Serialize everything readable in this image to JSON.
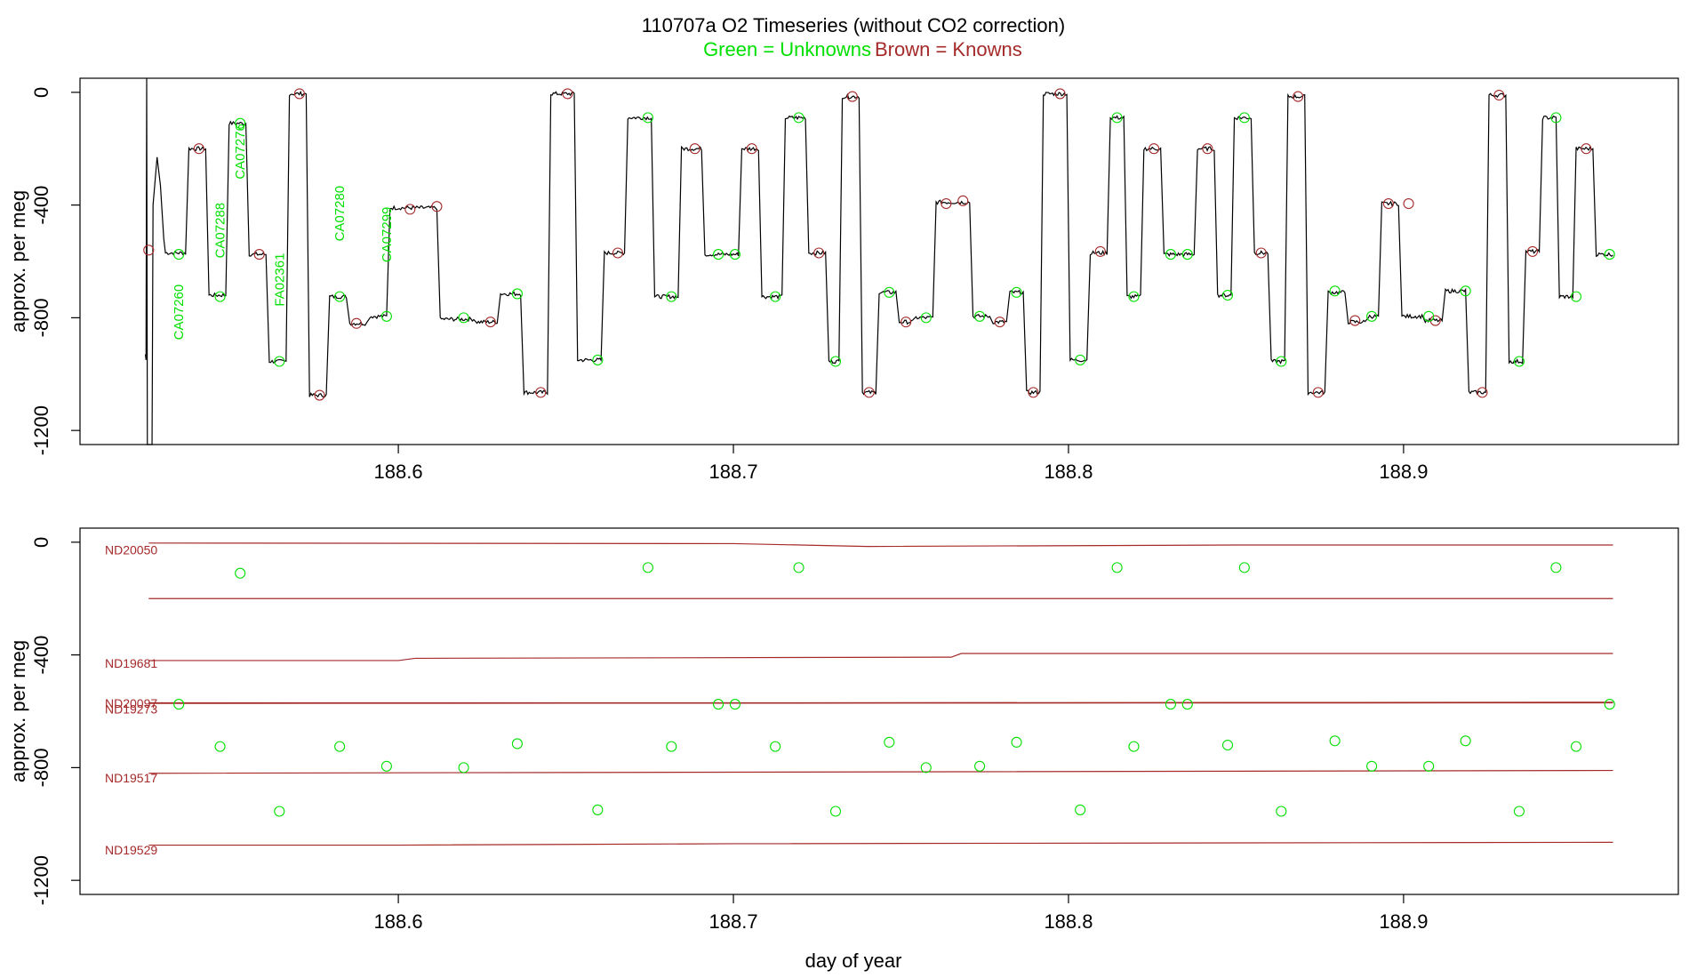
{
  "title": {
    "main": "110707a   O2 Timeseries (without CO2 correction)",
    "legend_unknowns": "Green = Unknowns",
    "legend_knowns": "Brown = Knowns"
  },
  "colors": {
    "unknown": "#00e000",
    "known": "#a52a2a",
    "trace": "#000000"
  },
  "chart_data": [
    {
      "type": "line",
      "panel": "top",
      "title": "110707a   O2 Timeseries (without CO2 correction)",
      "xlabel": "",
      "ylabel": "approx. per meg",
      "xlim": [
        188.505,
        188.982
      ],
      "ylim": [
        -1250,
        50
      ],
      "x_ticks": [
        "188.6",
        "188.7",
        "188.8",
        "188.9"
      ],
      "x_tick_values": [
        188.6,
        188.7,
        188.8,
        188.9
      ],
      "y_ticks": [
        "0",
        "-400",
        "-800",
        "-1200"
      ],
      "y_tick_values": [
        0,
        -400,
        -800,
        -1200
      ],
      "segments": [
        {
          "x0": 188.5305,
          "x1": 188.5365,
          "y": -570
        },
        {
          "x0": 188.5375,
          "x1": 188.5425,
          "y": -200
        },
        {
          "x0": 188.5435,
          "x1": 188.5485,
          "y": -720
        },
        {
          "x0": 188.5495,
          "x1": 188.5545,
          "y": -110
        },
        {
          "x0": 188.5555,
          "x1": 188.5605,
          "y": -575
        },
        {
          "x0": 188.5615,
          "x1": 188.5665,
          "y": -955
        },
        {
          "x0": 188.5675,
          "x1": 188.5725,
          "y": -5
        },
        {
          "x0": 188.5735,
          "x1": 188.5785,
          "y": -1075
        },
        {
          "x0": 188.5795,
          "x1": 188.5845,
          "y": -725
        },
        {
          "x0": 188.5855,
          "x1": 188.5905,
          "y": -820
        },
        {
          "x0": 188.5915,
          "x1": 188.5965,
          "y": -795
        },
        {
          "x0": 188.5975,
          "x1": 188.6115,
          "y": -410
        },
        {
          "x0": 188.6125,
          "x1": 188.6225,
          "y": -805
        },
        {
          "x0": 188.6235,
          "x1": 188.6295,
          "y": -815
        },
        {
          "x0": 188.6305,
          "x1": 188.6365,
          "y": -715
        },
        {
          "x0": 188.6375,
          "x1": 188.6445,
          "y": -1065
        },
        {
          "x0": 188.6455,
          "x1": 188.6525,
          "y": -5
        },
        {
          "x0": 188.6535,
          "x1": 188.6605,
          "y": -950
        },
        {
          "x0": 188.6615,
          "x1": 188.6675,
          "y": -570
        },
        {
          "x0": 188.6685,
          "x1": 188.6755,
          "y": -90
        },
        {
          "x0": 188.6765,
          "x1": 188.6835,
          "y": -725
        },
        {
          "x0": 188.6845,
          "x1": 188.6905,
          "y": -200
        },
        {
          "x0": 188.6915,
          "x1": 188.7015,
          "y": -575
        },
        {
          "x0": 188.7025,
          "x1": 188.7075,
          "y": -200
        },
        {
          "x0": 188.7085,
          "x1": 188.7145,
          "y": -725
        },
        {
          "x0": 188.7155,
          "x1": 188.7215,
          "y": -90
        },
        {
          "x0": 188.7225,
          "x1": 188.7275,
          "y": -570
        },
        {
          "x0": 188.7285,
          "x1": 188.7315,
          "y": -955
        },
        {
          "x0": 188.7325,
          "x1": 188.7375,
          "y": -15
        },
        {
          "x0": 188.7385,
          "x1": 188.7425,
          "y": -1065
        },
        {
          "x0": 188.7435,
          "x1": 188.7485,
          "y": -710
        },
        {
          "x0": 188.7495,
          "x1": 188.7535,
          "y": -815
        },
        {
          "x0": 188.7545,
          "x1": 188.7595,
          "y": -800
        },
        {
          "x0": 188.7605,
          "x1": 188.7705,
          "y": -390
        },
        {
          "x0": 188.7715,
          "x1": 188.7765,
          "y": -795
        },
        {
          "x0": 188.7775,
          "x1": 188.7815,
          "y": -815
        },
        {
          "x0": 188.7825,
          "x1": 188.7865,
          "y": -710
        },
        {
          "x0": 188.7875,
          "x1": 188.7915,
          "y": -1065
        },
        {
          "x0": 188.7925,
          "x1": 188.7995,
          "y": -5
        },
        {
          "x0": 188.8005,
          "x1": 188.8055,
          "y": -950
        },
        {
          "x0": 188.8065,
          "x1": 188.8115,
          "y": -570
        },
        {
          "x0": 188.8125,
          "x1": 188.8165,
          "y": -90
        },
        {
          "x0": 188.8175,
          "x1": 188.8215,
          "y": -725
        },
        {
          "x0": 188.8225,
          "x1": 188.8275,
          "y": -200
        },
        {
          "x0": 188.8285,
          "x1": 188.8375,
          "y": -575
        },
        {
          "x0": 188.8385,
          "x1": 188.8435,
          "y": -200
        },
        {
          "x0": 188.8445,
          "x1": 188.8485,
          "y": -720
        },
        {
          "x0": 188.8495,
          "x1": 188.8545,
          "y": -90
        },
        {
          "x0": 188.8555,
          "x1": 188.8595,
          "y": -570
        },
        {
          "x0": 188.8605,
          "x1": 188.8645,
          "y": -955
        },
        {
          "x0": 188.8655,
          "x1": 188.8705,
          "y": -15
        },
        {
          "x0": 188.8715,
          "x1": 188.8765,
          "y": -1065
        },
        {
          "x0": 188.8775,
          "x1": 188.8825,
          "y": -710
        },
        {
          "x0": 188.8835,
          "x1": 188.8885,
          "y": -815
        },
        {
          "x0": 188.8895,
          "x1": 188.8925,
          "y": -795
        },
        {
          "x0": 188.8935,
          "x1": 188.8985,
          "y": -395
        },
        {
          "x0": 188.8995,
          "x1": 188.9055,
          "y": -795
        },
        {
          "x0": 188.9065,
          "x1": 188.9115,
          "y": -810
        },
        {
          "x0": 188.9125,
          "x1": 188.9185,
          "y": -705
        },
        {
          "x0": 188.9195,
          "x1": 188.9245,
          "y": -1065
        },
        {
          "x0": 188.9255,
          "x1": 188.9305,
          "y": -10
        },
        {
          "x0": 188.9315,
          "x1": 188.9355,
          "y": -955
        },
        {
          "x0": 188.9365,
          "x1": 188.9405,
          "y": -565
        },
        {
          "x0": 188.9415,
          "x1": 188.9455,
          "y": -90
        },
        {
          "x0": 188.9465,
          "x1": 188.9505,
          "y": -725
        },
        {
          "x0": 188.9515,
          "x1": 188.9565,
          "y": -200
        },
        {
          "x0": 188.9575,
          "x1": 188.9625,
          "y": -575
        }
      ],
      "unknown_points": [
        {
          "x": 188.5345,
          "y": -575
        },
        {
          "x": 188.5468,
          "y": -725
        },
        {
          "x": 188.5528,
          "y": -110
        },
        {
          "x": 188.5645,
          "y": -955
        },
        {
          "x": 188.5825,
          "y": -725
        },
        {
          "x": 188.5965,
          "y": -795
        },
        {
          "x": 188.6195,
          "y": -800
        },
        {
          "x": 188.6355,
          "y": -715
        },
        {
          "x": 188.6595,
          "y": -950
        },
        {
          "x": 188.6745,
          "y": -90
        },
        {
          "x": 188.6815,
          "y": -725
        },
        {
          "x": 188.6955,
          "y": -575
        },
        {
          "x": 188.7005,
          "y": -575
        },
        {
          "x": 188.7125,
          "y": -725
        },
        {
          "x": 188.7195,
          "y": -90
        },
        {
          "x": 188.7305,
          "y": -955
        },
        {
          "x": 188.7465,
          "y": -710
        },
        {
          "x": 188.7575,
          "y": -800
        },
        {
          "x": 188.7735,
          "y": -795
        },
        {
          "x": 188.7845,
          "y": -710
        },
        {
          "x": 188.8035,
          "y": -950
        },
        {
          "x": 188.8145,
          "y": -90
        },
        {
          "x": 188.8195,
          "y": -725
        },
        {
          "x": 188.8305,
          "y": -575
        },
        {
          "x": 188.8355,
          "y": -575
        },
        {
          "x": 188.8475,
          "y": -720
        },
        {
          "x": 188.8525,
          "y": -90
        },
        {
          "x": 188.8635,
          "y": -955
        },
        {
          "x": 188.8795,
          "y": -705
        },
        {
          "x": 188.8905,
          "y": -795
        },
        {
          "x": 188.9075,
          "y": -795
        },
        {
          "x": 188.9185,
          "y": -705
        },
        {
          "x": 188.9345,
          "y": -955
        },
        {
          "x": 188.9455,
          "y": -90
        },
        {
          "x": 188.9515,
          "y": -725
        },
        {
          "x": 188.9615,
          "y": -575
        }
      ],
      "known_points": [
        {
          "x": 188.5255,
          "y": -560
        },
        {
          "x": 188.5405,
          "y": -200
        },
        {
          "x": 188.5585,
          "y": -575
        },
        {
          "x": 188.5705,
          "y": -5
        },
        {
          "x": 188.5765,
          "y": -1075
        },
        {
          "x": 188.5875,
          "y": -820
        },
        {
          "x": 188.6035,
          "y": -415
        },
        {
          "x": 188.6115,
          "y": -405
        },
        {
          "x": 188.6275,
          "y": -815
        },
        {
          "x": 188.6425,
          "y": -1065
        },
        {
          "x": 188.6505,
          "y": -5
        },
        {
          "x": 188.6655,
          "y": -570
        },
        {
          "x": 188.6885,
          "y": -200
        },
        {
          "x": 188.7055,
          "y": -200
        },
        {
          "x": 188.7255,
          "y": -570
        },
        {
          "x": 188.7355,
          "y": -15
        },
        {
          "x": 188.7405,
          "y": -1065
        },
        {
          "x": 188.7515,
          "y": -815
        },
        {
          "x": 188.7635,
          "y": -395
        },
        {
          "x": 188.7685,
          "y": -385
        },
        {
          "x": 188.7795,
          "y": -815
        },
        {
          "x": 188.7895,
          "y": -1065
        },
        {
          "x": 188.7975,
          "y": -5
        },
        {
          "x": 188.8095,
          "y": -565
        },
        {
          "x": 188.8255,
          "y": -200
        },
        {
          "x": 188.8415,
          "y": -200
        },
        {
          "x": 188.8575,
          "y": -570
        },
        {
          "x": 188.8685,
          "y": -15
        },
        {
          "x": 188.8745,
          "y": -1065
        },
        {
          "x": 188.8855,
          "y": -810
        },
        {
          "x": 188.8955,
          "y": -395
        },
        {
          "x": 188.9015,
          "y": -395
        },
        {
          "x": 188.9095,
          "y": -810
        },
        {
          "x": 188.9235,
          "y": -1065
        },
        {
          "x": 188.9285,
          "y": -10
        },
        {
          "x": 188.9385,
          "y": -565
        },
        {
          "x": 188.9545,
          "y": -200
        }
      ],
      "annotations": [
        {
          "text": "CA07260",
          "x": 188.5345,
          "y": -780
        },
        {
          "text": "CA07288",
          "x": 188.5468,
          "y": -490
        },
        {
          "text": "CA07276",
          "x": 188.5528,
          "y": -210
        },
        {
          "text": "FA02361",
          "x": 188.5645,
          "y": -665
        },
        {
          "text": "CA07280",
          "x": 188.5825,
          "y": -430
        },
        {
          "text": "CA07299",
          "x": 188.5965,
          "y": -505
        }
      ]
    },
    {
      "type": "line",
      "panel": "bottom",
      "title": "",
      "xlabel": "day of year",
      "ylabel": "approx. per meg",
      "xlim": [
        188.505,
        188.982
      ],
      "ylim": [
        -1250,
        50
      ],
      "x_ticks": [
        "188.6",
        "188.7",
        "188.8",
        "188.9"
      ],
      "x_tick_values": [
        188.6,
        188.7,
        188.8,
        188.9
      ],
      "y_ticks": [
        "0",
        "-400",
        "-800",
        "-1200"
      ],
      "y_tick_values": [
        0,
        -400,
        -800,
        -1200
      ],
      "series": [
        {
          "name": "ND20050",
          "label_y": -28,
          "points": [
            [
              188.5255,
              -3
            ],
            [
              188.7,
              -5
            ],
            [
              188.74,
              -15
            ],
            [
              188.85,
              -10
            ],
            [
              188.9625,
              -10
            ]
          ]
        },
        {
          "name": "",
          "label_y": null,
          "points": [
            [
              188.5255,
              -200
            ],
            [
              188.6,
              -200
            ],
            [
              188.7,
              -200
            ],
            [
              188.8,
              -200
            ],
            [
              188.9625,
              -200
            ]
          ]
        },
        {
          "name": "ND19681",
          "label_y": -430,
          "points": [
            [
              188.5255,
              -420
            ],
            [
              188.6,
              -420
            ],
            [
              188.605,
              -412
            ],
            [
              188.765,
              -408
            ],
            [
              188.768,
              -395
            ],
            [
              188.9625,
              -395
            ]
          ]
        },
        {
          "name": "ND20097",
          "label_y": -572,
          "points": [
            [
              188.5255,
              -570
            ],
            [
              188.7,
              -570
            ],
            [
              188.9625,
              -568
            ]
          ]
        },
        {
          "name": "ND19273",
          "label_y": -592,
          "points": [
            [
              188.5255,
              -572
            ],
            [
              188.9625,
              -570
            ]
          ]
        },
        {
          "name": "ND19517",
          "label_y": -837,
          "points": [
            [
              188.5255,
              -820
            ],
            [
              188.75,
              -815
            ],
            [
              188.9625,
              -810
            ]
          ]
        },
        {
          "name": "ND19529",
          "label_y": -1092,
          "points": [
            [
              188.5255,
              -1075
            ],
            [
              188.6,
              -1075
            ],
            [
              188.7,
              -1070
            ],
            [
              188.9625,
              -1065
            ]
          ]
        }
      ],
      "unknown_points": [
        {
          "x": 188.5345,
          "y": -575
        },
        {
          "x": 188.5468,
          "y": -725
        },
        {
          "x": 188.5528,
          "y": -110
        },
        {
          "x": 188.5645,
          "y": -955
        },
        {
          "x": 188.5825,
          "y": -725
        },
        {
          "x": 188.5965,
          "y": -795
        },
        {
          "x": 188.6195,
          "y": -800
        },
        {
          "x": 188.6355,
          "y": -715
        },
        {
          "x": 188.6595,
          "y": -950
        },
        {
          "x": 188.6745,
          "y": -90
        },
        {
          "x": 188.6815,
          "y": -725
        },
        {
          "x": 188.6955,
          "y": -575
        },
        {
          "x": 188.7005,
          "y": -575
        },
        {
          "x": 188.7125,
          "y": -725
        },
        {
          "x": 188.7195,
          "y": -90
        },
        {
          "x": 188.7305,
          "y": -955
        },
        {
          "x": 188.7465,
          "y": -710
        },
        {
          "x": 188.7575,
          "y": -800
        },
        {
          "x": 188.7735,
          "y": -795
        },
        {
          "x": 188.7845,
          "y": -710
        },
        {
          "x": 188.8035,
          "y": -950
        },
        {
          "x": 188.8145,
          "y": -90
        },
        {
          "x": 188.8195,
          "y": -725
        },
        {
          "x": 188.8305,
          "y": -575
        },
        {
          "x": 188.8355,
          "y": -575
        },
        {
          "x": 188.8475,
          "y": -720
        },
        {
          "x": 188.8525,
          "y": -90
        },
        {
          "x": 188.8635,
          "y": -955
        },
        {
          "x": 188.8795,
          "y": -705
        },
        {
          "x": 188.8905,
          "y": -795
        },
        {
          "x": 188.9075,
          "y": -795
        },
        {
          "x": 188.9185,
          "y": -705
        },
        {
          "x": 188.9345,
          "y": -955
        },
        {
          "x": 188.9455,
          "y": -90
        },
        {
          "x": 188.9515,
          "y": -725
        },
        {
          "x": 188.9615,
          "y": -575
        }
      ]
    }
  ]
}
